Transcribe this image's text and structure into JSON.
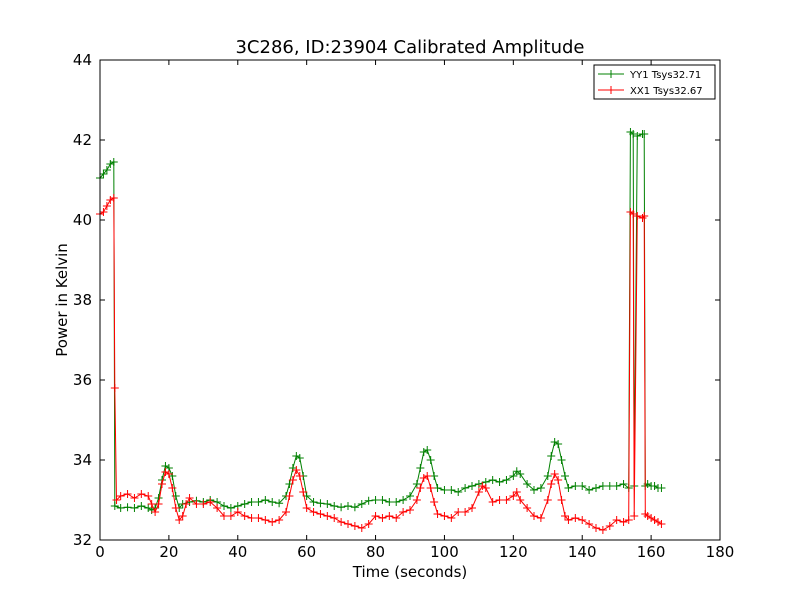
{
  "chart_data": {
    "type": "line",
    "title": "3C286, ID:23904 Calibrated Amplitude",
    "xlabel": "Time (seconds)",
    "ylabel": "Power in Kelvin",
    "xlim": [
      0,
      180
    ],
    "ylim": [
      32,
      44
    ],
    "xticks": [
      "0",
      "20",
      "40",
      "60",
      "80",
      "100",
      "120",
      "140",
      "160",
      "180"
    ],
    "yticks": [
      "32",
      "34",
      "36",
      "38",
      "40",
      "42",
      "44"
    ],
    "grid": false,
    "legend_position": "top-right",
    "marker": "+",
    "series": [
      {
        "name": "YY1 Tsys32.71",
        "color": "#008000",
        "points": [
          [
            0,
            41.05
          ],
          [
            1,
            41.15
          ],
          [
            2,
            41.25
          ],
          [
            3,
            41.4
          ],
          [
            4,
            41.45
          ],
          [
            4.3,
            32.85
          ],
          [
            6,
            32.8
          ],
          [
            8,
            32.82
          ],
          [
            10,
            32.8
          ],
          [
            12,
            32.85
          ],
          [
            14,
            32.8
          ],
          [
            15,
            32.75
          ],
          [
            16,
            32.8
          ],
          [
            17,
            33.05
          ],
          [
            18,
            33.5
          ],
          [
            19,
            33.85
          ],
          [
            20,
            33.8
          ],
          [
            21,
            33.6
          ],
          [
            22,
            33.1
          ],
          [
            23,
            32.8
          ],
          [
            24,
            32.9
          ],
          [
            26,
            32.95
          ],
          [
            28,
            32.98
          ],
          [
            30,
            32.95
          ],
          [
            32,
            33.0
          ],
          [
            34,
            32.95
          ],
          [
            36,
            32.85
          ],
          [
            38,
            32.8
          ],
          [
            40,
            32.85
          ],
          [
            42,
            32.9
          ],
          [
            44,
            32.95
          ],
          [
            46,
            32.95
          ],
          [
            48,
            33.0
          ],
          [
            50,
            32.95
          ],
          [
            52,
            32.92
          ],
          [
            54,
            33.1
          ],
          [
            55,
            33.4
          ],
          [
            56,
            33.8
          ],
          [
            57,
            34.1
          ],
          [
            58,
            34.05
          ],
          [
            59,
            33.6
          ],
          [
            60,
            33.1
          ],
          [
            62,
            32.95
          ],
          [
            64,
            32.92
          ],
          [
            66,
            32.9
          ],
          [
            68,
            32.85
          ],
          [
            70,
            32.82
          ],
          [
            72,
            32.85
          ],
          [
            74,
            32.82
          ],
          [
            76,
            32.9
          ],
          [
            78,
            32.98
          ],
          [
            80,
            33.0
          ],
          [
            82,
            33.0
          ],
          [
            84,
            32.95
          ],
          [
            86,
            32.95
          ],
          [
            88,
            33.0
          ],
          [
            90,
            33.1
          ],
          [
            92,
            33.4
          ],
          [
            93,
            33.8
          ],
          [
            94,
            34.2
          ],
          [
            95,
            34.25
          ],
          [
            96,
            34.0
          ],
          [
            97,
            33.6
          ],
          [
            98,
            33.3
          ],
          [
            100,
            33.25
          ],
          [
            102,
            33.25
          ],
          [
            104,
            33.2
          ],
          [
            106,
            33.3
          ],
          [
            108,
            33.35
          ],
          [
            110,
            33.4
          ],
          [
            112,
            33.45
          ],
          [
            114,
            33.5
          ],
          [
            116,
            33.45
          ],
          [
            118,
            33.5
          ],
          [
            120,
            33.6
          ],
          [
            121,
            33.72
          ],
          [
            122,
            33.65
          ],
          [
            124,
            33.4
          ],
          [
            126,
            33.25
          ],
          [
            128,
            33.3
          ],
          [
            130,
            33.6
          ],
          [
            131,
            34.1
          ],
          [
            132,
            34.45
          ],
          [
            133,
            34.4
          ],
          [
            134,
            34.0
          ],
          [
            135,
            33.6
          ],
          [
            136,
            33.3
          ],
          [
            138,
            33.35
          ],
          [
            140,
            33.35
          ],
          [
            142,
            33.25
          ],
          [
            144,
            33.3
          ],
          [
            146,
            33.35
          ],
          [
            148,
            33.35
          ],
          [
            150,
            33.35
          ],
          [
            152,
            33.4
          ],
          [
            153.5,
            33.3
          ],
          [
            154,
            42.2
          ],
          [
            154.8,
            42.15
          ],
          [
            155.1,
            33.35
          ],
          [
            156,
            42.1
          ],
          [
            157.5,
            42.15
          ],
          [
            158,
            42.15
          ],
          [
            158.3,
            33.35
          ],
          [
            159,
            33.4
          ],
          [
            160,
            33.35
          ],
          [
            161,
            33.35
          ],
          [
            162,
            33.3
          ],
          [
            163,
            33.3
          ]
        ]
      },
      {
        "name": "XX1 Tsys32.67",
        "color": "#ff0000",
        "points": [
          [
            0,
            40.15
          ],
          [
            1,
            40.2
          ],
          [
            2,
            40.35
          ],
          [
            3,
            40.5
          ],
          [
            4,
            40.55
          ],
          [
            4.3,
            35.8
          ],
          [
            4.8,
            33.0
          ],
          [
            6,
            33.1
          ],
          [
            8,
            33.15
          ],
          [
            10,
            33.05
          ],
          [
            12,
            33.15
          ],
          [
            14,
            33.1
          ],
          [
            15,
            32.9
          ],
          [
            16,
            32.7
          ],
          [
            17,
            32.9
          ],
          [
            18,
            33.4
          ],
          [
            19,
            33.7
          ],
          [
            20,
            33.65
          ],
          [
            21,
            33.3
          ],
          [
            22,
            32.8
          ],
          [
            23,
            32.5
          ],
          [
            24,
            32.6
          ],
          [
            25,
            32.9
          ],
          [
            26,
            33.05
          ],
          [
            28,
            32.9
          ],
          [
            30,
            32.9
          ],
          [
            32,
            32.95
          ],
          [
            34,
            32.8
          ],
          [
            36,
            32.6
          ],
          [
            38,
            32.6
          ],
          [
            40,
            32.7
          ],
          [
            42,
            32.6
          ],
          [
            44,
            32.55
          ],
          [
            46,
            32.55
          ],
          [
            48,
            32.5
          ],
          [
            50,
            32.45
          ],
          [
            52,
            32.5
          ],
          [
            54,
            32.7
          ],
          [
            55,
            33.1
          ],
          [
            56,
            33.5
          ],
          [
            57,
            33.75
          ],
          [
            58,
            33.6
          ],
          [
            59,
            33.2
          ],
          [
            60,
            32.8
          ],
          [
            62,
            32.7
          ],
          [
            64,
            32.65
          ],
          [
            66,
            32.6
          ],
          [
            68,
            32.55
          ],
          [
            70,
            32.45
          ],
          [
            72,
            32.4
          ],
          [
            74,
            32.35
          ],
          [
            76,
            32.3
          ],
          [
            78,
            32.4
          ],
          [
            80,
            32.6
          ],
          [
            82,
            32.55
          ],
          [
            84,
            32.6
          ],
          [
            86,
            32.55
          ],
          [
            88,
            32.7
          ],
          [
            90,
            32.75
          ],
          [
            92,
            33.0
          ],
          [
            93,
            33.3
          ],
          [
            94,
            33.55
          ],
          [
            95,
            33.6
          ],
          [
            96,
            33.3
          ],
          [
            97,
            32.95
          ],
          [
            98,
            32.65
          ],
          [
            100,
            32.6
          ],
          [
            102,
            32.55
          ],
          [
            104,
            32.7
          ],
          [
            106,
            32.7
          ],
          [
            108,
            32.8
          ],
          [
            110,
            33.2
          ],
          [
            111,
            33.35
          ],
          [
            112,
            33.3
          ],
          [
            114,
            32.95
          ],
          [
            116,
            33.0
          ],
          [
            118,
            33.0
          ],
          [
            120,
            33.1
          ],
          [
            121,
            33.2
          ],
          [
            122,
            33.0
          ],
          [
            124,
            32.8
          ],
          [
            126,
            32.6
          ],
          [
            128,
            32.55
          ],
          [
            130,
            33.0
          ],
          [
            131,
            33.4
          ],
          [
            132,
            33.65
          ],
          [
            133,
            33.5
          ],
          [
            134,
            33.0
          ],
          [
            135,
            32.6
          ],
          [
            136,
            32.5
          ],
          [
            138,
            32.55
          ],
          [
            140,
            32.5
          ],
          [
            142,
            32.4
          ],
          [
            144,
            32.3
          ],
          [
            146,
            32.25
          ],
          [
            148,
            32.35
          ],
          [
            150,
            32.5
          ],
          [
            152,
            32.45
          ],
          [
            153.5,
            32.5
          ],
          [
            154,
            40.2
          ],
          [
            154.8,
            40.15
          ],
          [
            155.1,
            32.6
          ],
          [
            156,
            40.1
          ],
          [
            157.5,
            40.05
          ],
          [
            158,
            40.1
          ],
          [
            158.3,
            32.65
          ],
          [
            159,
            32.6
          ],
          [
            160,
            32.55
          ],
          [
            161,
            32.5
          ],
          [
            162,
            32.45
          ],
          [
            163,
            32.4
          ]
        ]
      }
    ]
  }
}
